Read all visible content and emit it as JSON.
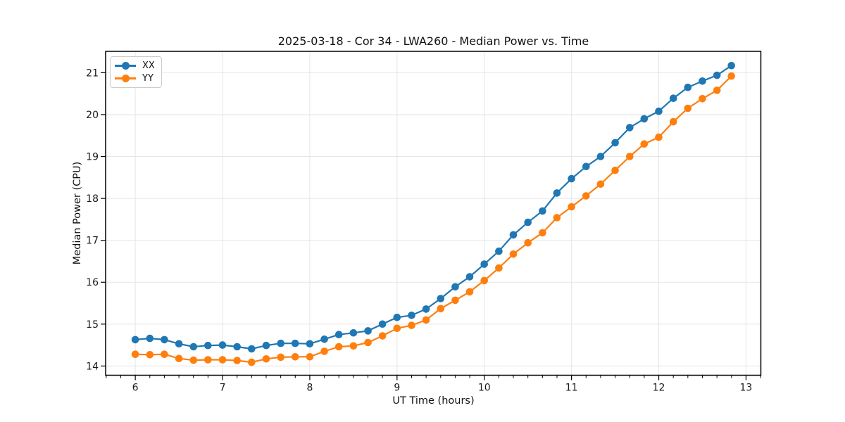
{
  "figure": {
    "title": "2025-03-18 - Cor 34 - LWA260 - Median Power vs. Time"
  },
  "chart_data": {
    "type": "line",
    "title": "2025-03-18 - Cor 34 - LWA260 - Median Power vs. Time",
    "xlabel": "UT Time (hours)",
    "ylabel": "Median Power (CPU)",
    "xlim": [
      5.66,
      13.17
    ],
    "ylim": [
      13.78,
      21.51
    ],
    "x_ticks": [
      6,
      7,
      8,
      9,
      10,
      11,
      12,
      13
    ],
    "y_ticks": [
      14,
      15,
      16,
      17,
      18,
      19,
      20,
      21
    ],
    "grid": true,
    "legend_position": "upper left",
    "marker": "circle",
    "x": [
      6.0,
      6.167,
      6.333,
      6.5,
      6.667,
      6.833,
      7.0,
      7.167,
      7.333,
      7.5,
      7.667,
      7.833,
      8.0,
      8.167,
      8.333,
      8.5,
      8.667,
      8.833,
      9.0,
      9.167,
      9.333,
      9.5,
      9.667,
      9.833,
      10.0,
      10.167,
      10.333,
      10.5,
      10.667,
      10.833,
      11.0,
      11.167,
      11.333,
      11.5,
      11.667,
      11.833,
      12.0,
      12.167,
      12.333,
      12.5,
      12.667,
      12.833
    ],
    "series": [
      {
        "name": "XX",
        "color": "#1f77b4",
        "values": [
          14.63,
          14.66,
          14.63,
          14.53,
          14.46,
          14.49,
          14.5,
          14.46,
          14.41,
          14.49,
          14.54,
          14.54,
          14.53,
          14.64,
          14.75,
          14.79,
          14.84,
          15.0,
          15.16,
          15.21,
          15.36,
          15.61,
          15.89,
          16.13,
          16.43,
          16.74,
          17.13,
          17.43,
          17.7,
          18.13,
          18.47,
          18.76,
          19.0,
          19.33,
          19.69,
          19.9,
          20.08,
          20.39,
          20.65,
          20.8,
          20.94,
          21.17
        ]
      },
      {
        "name": "YY",
        "color": "#ff7f0e",
        "values": [
          14.28,
          14.27,
          14.28,
          14.18,
          14.14,
          14.15,
          14.15,
          14.13,
          14.09,
          14.17,
          14.21,
          14.22,
          14.22,
          14.35,
          14.46,
          14.48,
          14.56,
          14.72,
          14.9,
          14.97,
          15.1,
          15.37,
          15.57,
          15.77,
          16.04,
          16.34,
          16.67,
          16.94,
          17.18,
          17.54,
          17.8,
          18.06,
          18.34,
          18.67,
          19.0,
          19.3,
          19.46,
          19.83,
          20.15,
          20.38,
          20.58,
          20.92
        ]
      }
    ]
  },
  "colors": {
    "xx": "#1f77b4",
    "yy": "#ff7f0e",
    "grid": "#e7e7e7",
    "spine": "#000000",
    "text": "#1a1a1a",
    "background": "#ffffff"
  }
}
